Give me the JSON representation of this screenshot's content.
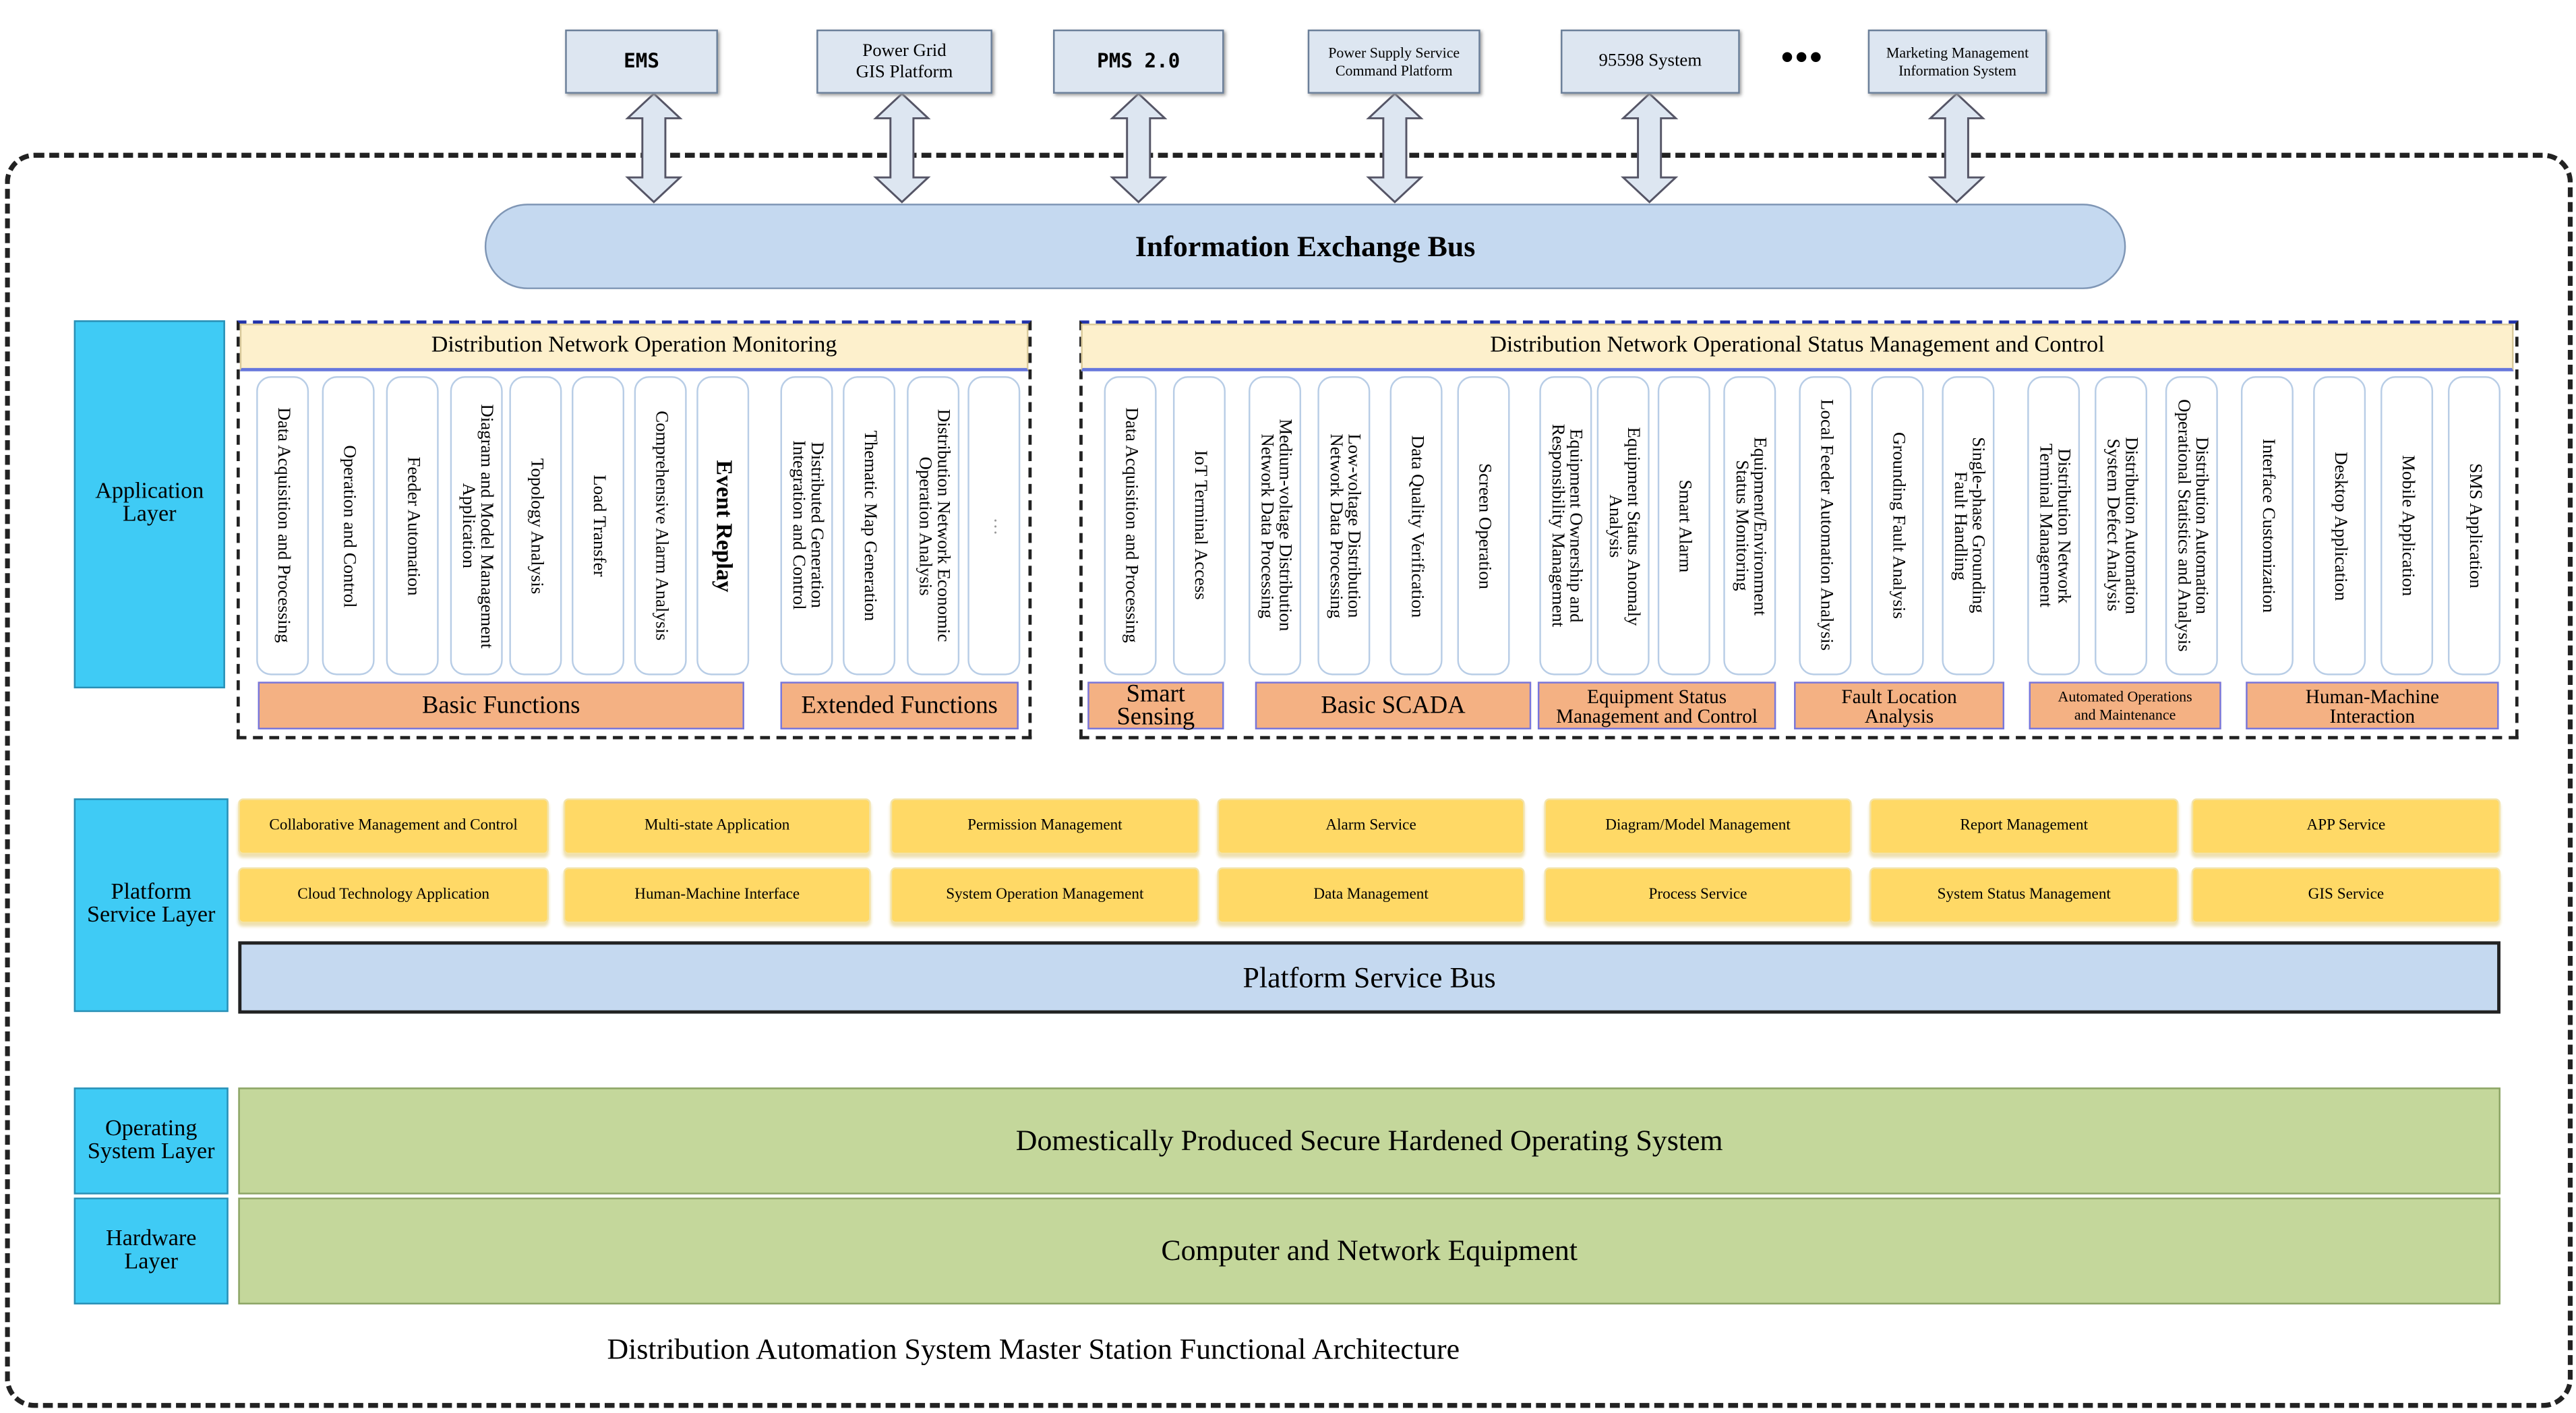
{
  "external_systems": [
    {
      "label": "EMS",
      "style": "mono"
    },
    {
      "label": "Power Grid\nGIS Platform",
      "style": ""
    },
    {
      "label": "PMS 2.0",
      "style": "mono"
    },
    {
      "label": "Power Supply Service\nCommand Platform",
      "style": "small"
    },
    {
      "label": "95598 System",
      "style": ""
    },
    {
      "label": "Marketing Management\nInformation System",
      "style": "small"
    }
  ],
  "ellipsis": "•••",
  "information_bus": "Information Exchange Bus",
  "application_layer": {
    "label": "Application\nLayer",
    "group1": {
      "title": "Distribution Network Operation Monitoring",
      "columns": [
        "Data Acquisition and Processing",
        "Operation and Control",
        "Feeder Automation",
        "Diagram and Model Management\nApplication",
        "Topology Analysis",
        "Load Transfer",
        "Comprehensive Alarm Analysis",
        "Event Replay",
        "Distributed Generation\nIntegration and Control",
        "Thematic Map Generation",
        "Distribution Network Economic\nOperation Analysis",
        "···"
      ],
      "categories": [
        "Basic Functions",
        "Extended Functions"
      ]
    },
    "group2": {
      "title": "Distribution Network Operational Status Management and Control",
      "columns": [
        "Data Acquisition and Processing",
        "IoT Terminal Access",
        "Medium-voltage Distribution\nNetwork Data Processing",
        "Low-voltage Distribution\nNetwork Data Processing",
        "Data Quality Verification",
        "Screen Operation",
        "Equipment Ownership and\nResponsibility Management",
        "Equipment Status Anomaly\nAnalysis",
        "Smart Alarm",
        "Equipment/Environment\nStatus Monitoring",
        "Local Feeder Automation Analysis",
        "Grounding Fault Analysis",
        "Single-phase Grounding\nFault Handling",
        "Distribution Network\nTerminal Management",
        "Distribution Automation\nSystem Defect Analysis",
        "Distribution Automation\nOperational Statistics and Analysis",
        "Interface Customization",
        "Desktop Application",
        "Mobile Application",
        "SMS Application"
      ],
      "categories": [
        "Smart\nSensing",
        "Basic SCADA",
        "Equipment Status\nManagement and Control",
        "Fault Location\nAnalysis",
        "Automated Operations\nand Maintenance",
        "Human-Machine\nInteraction"
      ]
    }
  },
  "platform_layer": {
    "label": "Platform\nService Layer",
    "row1": [
      "Collaborative Management and Control",
      "Multi-state Application",
      "Permission Management",
      "Alarm Service",
      "Diagram/Model Management",
      "Report Management",
      "APP Service"
    ],
    "row2": [
      "Cloud Technology Application",
      "Human-Machine Interface",
      "System Operation Management",
      "Data Management",
      "Process Service",
      "System Status Management",
      "GIS Service"
    ],
    "bus": "Platform Service Bus"
  },
  "os_layer": {
    "label": "Operating\nSystem Layer",
    "content": "Domestically Produced Secure Hardened Operating System"
  },
  "hardware_layer": {
    "label": "Hardware\nLayer",
    "content": "Computer and Network Equipment"
  },
  "caption": "Distribution Automation System Master Station Functional Architecture",
  "colors": {
    "layer": "#3fcbf5",
    "category": "#f4b183",
    "header": "#fdf0cc",
    "platform_button": "#ffd966",
    "green": "#c4d79b",
    "bus": "#c5d9f0"
  }
}
